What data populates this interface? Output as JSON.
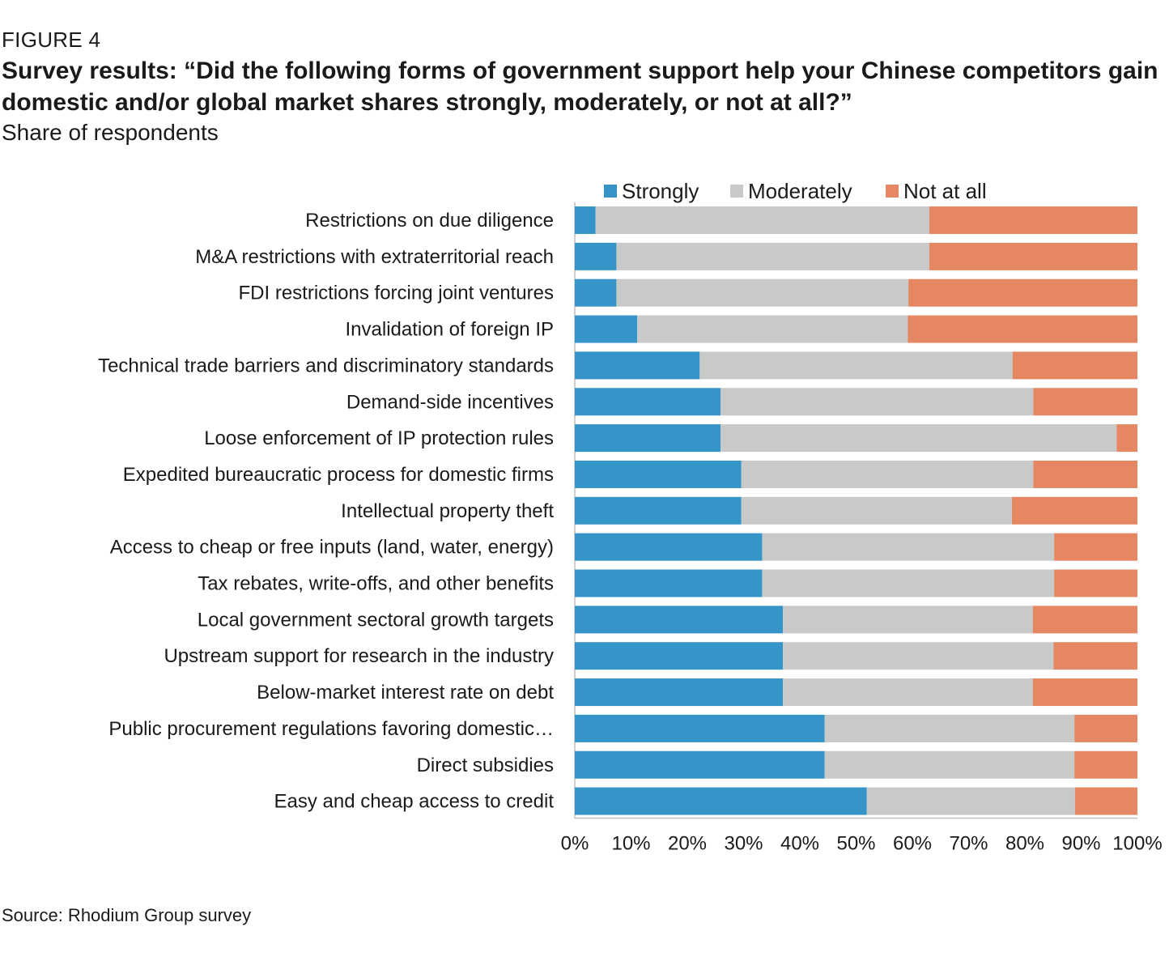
{
  "figure_label": "FIGURE 4",
  "title": "Survey results: “Did the following forms of government support help your Chinese competitors gain domestic and/or global market shares strongly, moderately, or not at all?”",
  "subtitle": "Share of respondents",
  "source": "Source: Rhodium Group survey",
  "colors": {
    "strongly": "#3594c8",
    "moderately": "#c8c9c9",
    "not_at_all": "#e48762",
    "axis": "#bfbfbf",
    "text": "#1a1a1a"
  },
  "chart_data": {
    "type": "bar",
    "orientation": "horizontal",
    "stacked": "100%",
    "legend_position": "top",
    "grid": false,
    "xlim": [
      0,
      100
    ],
    "xticks": [
      "0%",
      "10%",
      "20%",
      "30%",
      "40%",
      "50%",
      "60%",
      "70%",
      "80%",
      "90%",
      "100%"
    ],
    "categories": [
      "Restrictions on due diligence ",
      "M&A restrictions with extraterritorial reach",
      "FDI restrictions forcing joint ventures ",
      "Invalidation of foreign IP ",
      "Technical trade barriers and discriminatory standards",
      "Demand-side incentives ",
      "Loose enforcement of IP protection rules",
      "Expedited bureaucratic process for domestic firms ",
      "Intellectual property theft",
      "Access to cheap or free inputs (land, water, energy)",
      "Tax rebates, write-offs, and other benefits",
      "Local government sectoral growth targets",
      "Upstream support for research in the industry",
      "Below-market interest rate on debt",
      "Public procurement regulations favoring domestic…",
      "Direct subsidies",
      "Easy and cheap access to credit"
    ],
    "series": [
      {
        "name": "Strongly",
        "values": [
          3.7,
          7.4,
          7.4,
          11.1,
          22.2,
          25.9,
          25.9,
          29.6,
          29.6,
          33.3,
          33.3,
          37.0,
          37.0,
          37.0,
          44.4,
          44.4,
          51.9
        ]
      },
      {
        "name": "Moderately",
        "values": [
          59.3,
          55.6,
          51.9,
          48.1,
          55.6,
          55.6,
          70.4,
          51.9,
          48.1,
          51.9,
          51.9,
          44.4,
          48.1,
          44.4,
          44.4,
          44.4,
          37.0
        ]
      },
      {
        "name": "Not at all",
        "values": [
          37.0,
          37.0,
          40.7,
          40.8,
          22.2,
          18.5,
          3.7,
          18.5,
          22.3,
          14.8,
          14.8,
          18.6,
          14.9,
          18.6,
          11.2,
          11.2,
          11.1
        ]
      }
    ]
  }
}
